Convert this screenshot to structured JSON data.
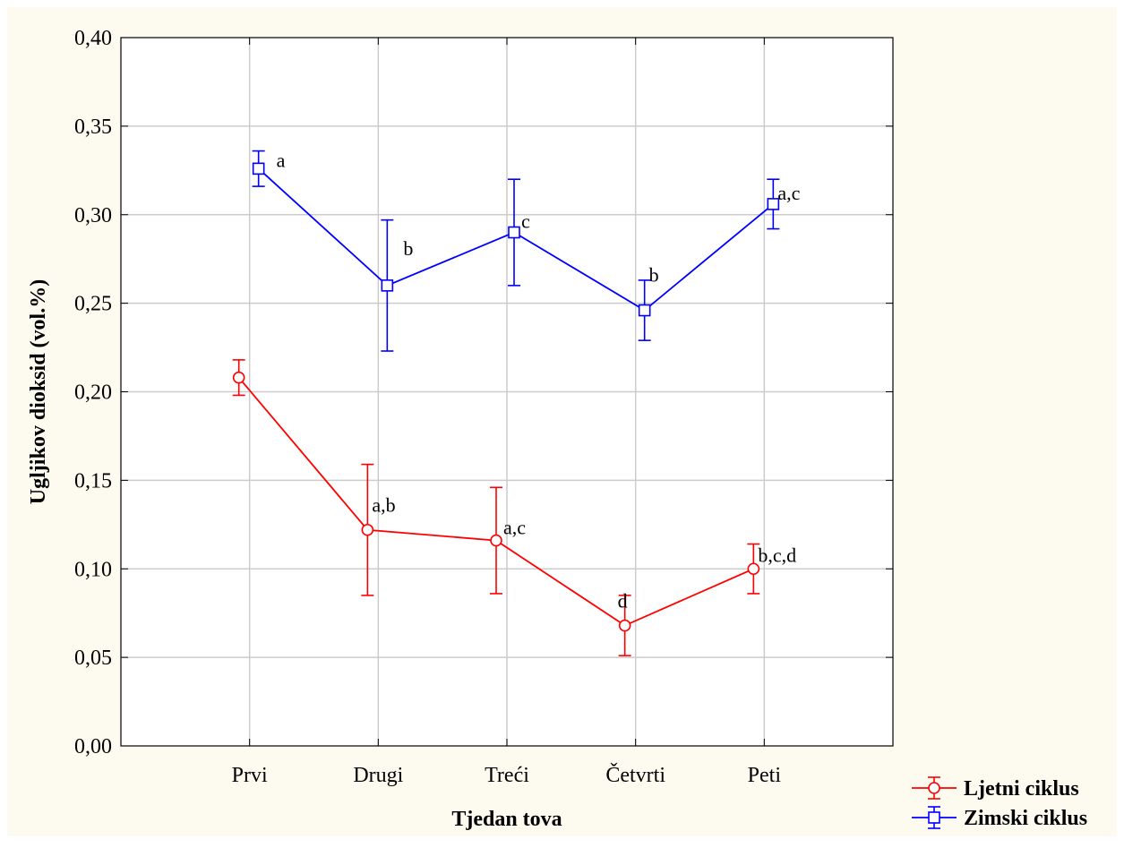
{
  "chart_data": {
    "type": "line",
    "title": "",
    "xlabel": "Tjedan tova",
    "ylabel": "Ugljikov dioksid (vol.%)",
    "categories": [
      "Prvi",
      "Drugi",
      "Treći",
      "Četvrti",
      "Peti"
    ],
    "ylim": [
      0,
      0.4
    ],
    "yticks": [
      "0,00",
      "0,05",
      "0,10",
      "0,15",
      "0,20",
      "0,25",
      "0,30",
      "0,35",
      "0,40"
    ],
    "grid": true,
    "legend_position": "bottom-right, outside",
    "series": [
      {
        "name": "Ljetni ciklus",
        "color": "#ff0000",
        "marker": "circle",
        "values": [
          0.208,
          0.122,
          0.116,
          0.068,
          0.1
        ],
        "err_low": [
          0.198,
          0.085,
          0.086,
          0.051,
          0.086
        ],
        "err_high": [
          0.218,
          0.159,
          0.146,
          0.085,
          0.114
        ],
        "annotations": [
          "",
          "a,b",
          "a,c",
          "d",
          "b,c,d"
        ]
      },
      {
        "name": "Zimski ciklus",
        "color": "#0000ff",
        "marker": "square",
        "values": [
          0.326,
          0.26,
          0.29,
          0.246,
          0.306
        ],
        "err_low": [
          0.316,
          0.223,
          0.26,
          0.229,
          0.292
        ],
        "err_high": [
          0.336,
          0.297,
          0.32,
          0.263,
          0.32
        ],
        "annotations": [
          "a",
          "b",
          "c",
          "b",
          "a,c"
        ]
      }
    ]
  },
  "colors": {
    "background": "#fdfbf0",
    "plot_area": "#ffffff",
    "grid": "#cccccc",
    "axis": "#000000"
  }
}
